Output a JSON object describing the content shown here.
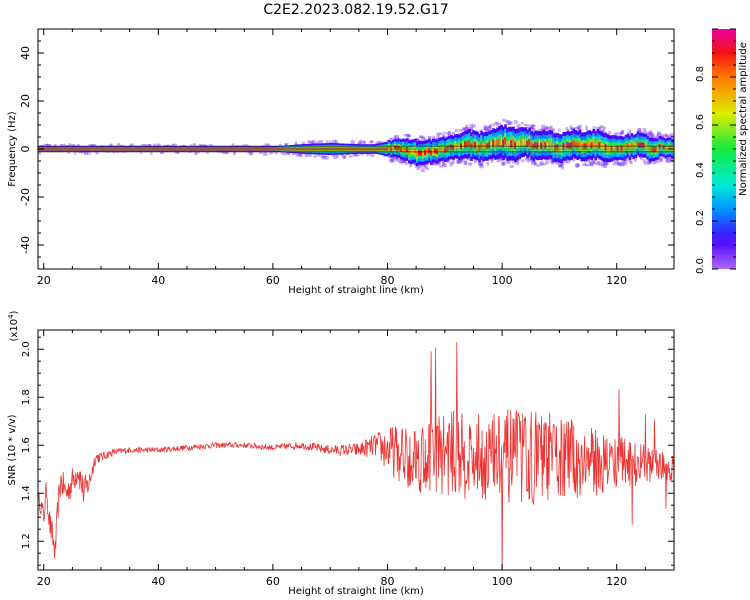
{
  "title": "C2E2.2023.082.19.52.G17",
  "colors": {
    "signal": "#ee3333",
    "axis": "#000000"
  },
  "chart_data": [
    {
      "type": "heatmap",
      "xlabel": "Height of straight line (km)",
      "ylabel": "Frequency (Hz)",
      "xlim": [
        19,
        130
      ],
      "ylim": [
        -50,
        50
      ],
      "x_ticks": [
        20,
        40,
        60,
        80,
        100,
        120
      ],
      "y_ticks": [
        -40,
        -20,
        0,
        20,
        40
      ],
      "x_tick_labels": [
        "20",
        "40",
        "60",
        "80",
        "100",
        "120"
      ],
      "y_tick_labels": [
        "-40",
        "-20",
        "0",
        "20",
        "40"
      ],
      "colorbar": {
        "label": "Normalized spectral amplitude",
        "range": [
          0,
          1
        ],
        "ticks": [
          0.0,
          0.2,
          0.4,
          0.6,
          0.8
        ],
        "tick_labels": [
          "0.0",
          "0.2",
          "0.4",
          "0.6",
          "0.8"
        ]
      },
      "ridge": {
        "x": [
          19,
          30,
          40,
          50,
          60,
          65,
          70,
          75,
          78,
          80,
          82,
          84,
          86,
          88,
          90,
          92,
          94,
          96,
          98,
          100,
          102,
          104,
          106,
          108,
          110,
          112,
          114,
          116,
          118,
          120,
          122,
          124,
          126,
          128,
          130
        ],
        "freq": [
          0,
          0,
          0,
          0,
          0,
          0,
          0,
          0,
          0,
          0,
          0,
          -1,
          -2,
          -1,
          0,
          1,
          2,
          1,
          2,
          3,
          2,
          3,
          1,
          2,
          0,
          2,
          1,
          2,
          1,
          0,
          1,
          2,
          0,
          1,
          0
        ],
        "width": [
          1,
          1,
          1,
          1,
          1,
          2,
          2.5,
          2,
          2,
          3,
          4,
          5,
          5,
          5,
          5,
          5,
          6,
          6,
          6,
          7,
          7,
          6,
          6,
          6,
          6,
          6,
          6,
          6,
          6,
          5,
          5,
          5,
          5,
          4,
          4
        ]
      }
    },
    {
      "type": "line",
      "xlabel": "Height of straight line (km)",
      "ylabel": "SNR (10 * v/v)",
      "y_scale_label": "(x10",
      "y_scale_exp": "4",
      "y_scale_close": ")",
      "xlim": [
        19,
        130
      ],
      "ylim": [
        1.08,
        2.08
      ],
      "x_ticks": [
        20,
        40,
        60,
        80,
        100,
        120
      ],
      "y_ticks": [
        1.2,
        1.4,
        1.6,
        1.8,
        2.0
      ],
      "x_tick_labels": [
        "20",
        "40",
        "60",
        "80",
        "100",
        "120"
      ],
      "y_tick_labels": [
        "1.2",
        "1.4",
        "1.6",
        "1.8",
        "2.0"
      ],
      "series": [
        {
          "x": [
            19,
            19.5,
            20,
            20.5,
            21,
            21.5,
            22,
            22.5,
            23,
            24,
            25,
            26,
            27,
            28,
            29,
            30,
            32,
            35,
            40,
            45,
            50,
            55,
            60,
            65,
            70,
            75,
            78,
            80,
            85,
            90,
            95,
            100,
            105,
            110,
            115,
            120,
            125,
            130
          ],
          "mean": [
            1.38,
            1.35,
            1.3,
            1.42,
            1.28,
            1.22,
            1.15,
            1.35,
            1.45,
            1.4,
            1.45,
            1.5,
            1.4,
            1.45,
            1.55,
            1.55,
            1.57,
            1.58,
            1.58,
            1.59,
            1.6,
            1.6,
            1.59,
            1.6,
            1.58,
            1.58,
            1.6,
            1.58,
            1.55,
            1.57,
            1.55,
            1.55,
            1.55,
            1.55,
            1.53,
            1.53,
            1.52,
            1.5
          ],
          "amp": [
            0.03,
            0.04,
            0.05,
            0.05,
            0.06,
            0.06,
            0.06,
            0.06,
            0.06,
            0.06,
            0.06,
            0.06,
            0.07,
            0.05,
            0.03,
            0.02,
            0.015,
            0.012,
            0.012,
            0.012,
            0.012,
            0.012,
            0.012,
            0.015,
            0.02,
            0.03,
            0.05,
            0.1,
            0.15,
            0.18,
            0.18,
            0.2,
            0.2,
            0.18,
            0.15,
            0.12,
            0.08,
            0.06
          ]
        }
      ]
    }
  ]
}
